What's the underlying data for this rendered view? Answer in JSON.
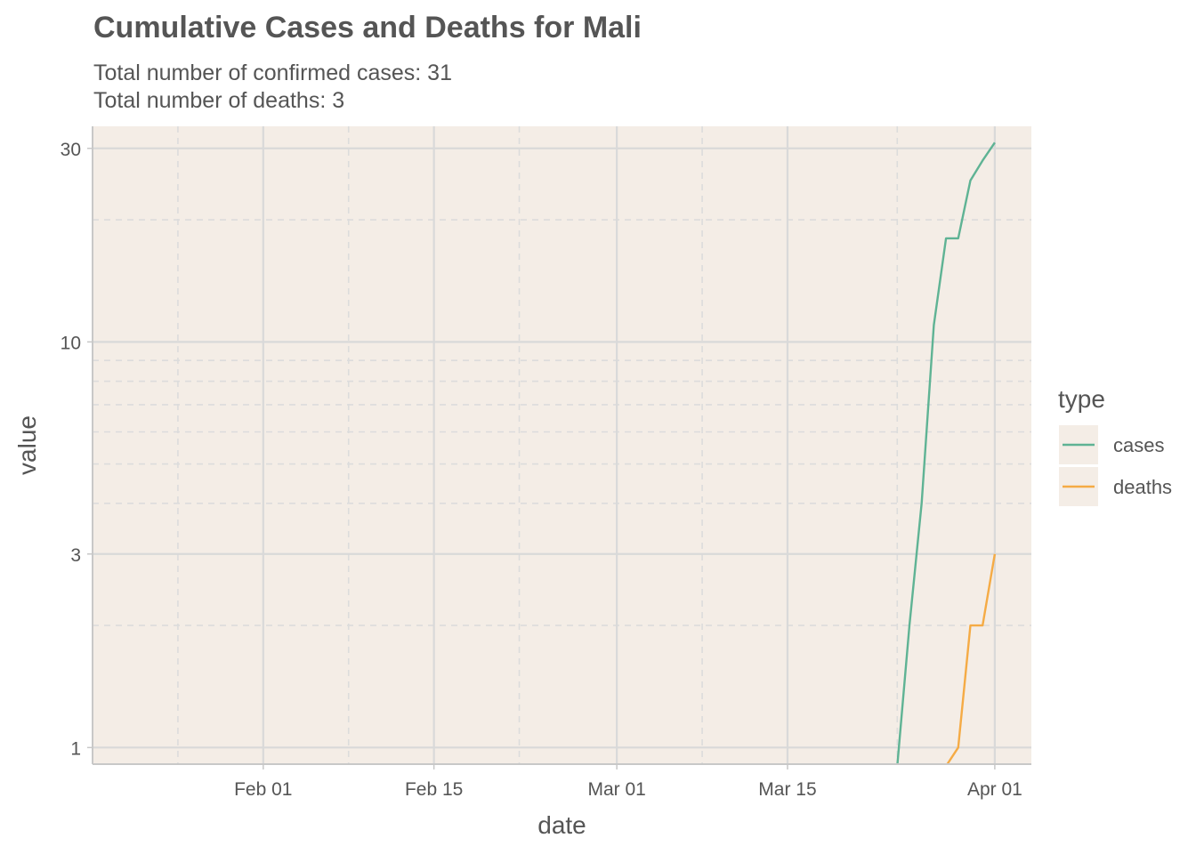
{
  "chart_data": {
    "type": "line",
    "title": "Cumulative Cases and Deaths for Mali",
    "subtitle_lines": [
      "Total number of confirmed cases: 31",
      "Total number of deaths: 3"
    ],
    "xlabel": "date",
    "ylabel": "value",
    "x_scale": "date",
    "y_scale": "log10",
    "xlim": [
      "2020-01-18",
      "2020-04-04"
    ],
    "ylim": [
      0.91,
      34
    ],
    "x_ticks": [
      {
        "value": "2020-02-01",
        "label": "Feb 01"
      },
      {
        "value": "2020-02-15",
        "label": "Feb 15"
      },
      {
        "value": "2020-03-01",
        "label": "Mar 01"
      },
      {
        "value": "2020-03-15",
        "label": "Mar 15"
      },
      {
        "value": "2020-04-01",
        "label": "Apr 01"
      }
    ],
    "x_minor_ticks": [
      "2020-01-25",
      "2020-02-08",
      "2020-02-22",
      "2020-03-08",
      "2020-03-24"
    ],
    "y_ticks": [
      {
        "value": 1,
        "label": "1"
      },
      {
        "value": 3,
        "label": "3"
      },
      {
        "value": 10,
        "label": "10"
      },
      {
        "value": 30,
        "label": "30"
      }
    ],
    "y_minor_ticks": [
      2,
      4,
      5,
      6,
      7,
      8,
      9,
      20
    ],
    "grid": true,
    "legend": {
      "title": "type",
      "position": "right"
    },
    "background_color": "#f4ede6",
    "series": [
      {
        "name": "cases",
        "color": "#5fb394",
        "points": [
          {
            "x": "2020-03-24",
            "y": 0.9
          },
          {
            "x": "2020-03-25",
            "y": 2
          },
          {
            "x": "2020-03-26",
            "y": 4
          },
          {
            "x": "2020-03-27",
            "y": 11
          },
          {
            "x": "2020-03-28",
            "y": 18
          },
          {
            "x": "2020-03-29",
            "y": 18
          },
          {
            "x": "2020-03-30",
            "y": 25
          },
          {
            "x": "2020-03-31",
            "y": 28
          },
          {
            "x": "2020-04-01",
            "y": 31
          }
        ]
      },
      {
        "name": "deaths",
        "color": "#f5ab45",
        "points": [
          {
            "x": "2020-03-28",
            "y": 0.9
          },
          {
            "x": "2020-03-29",
            "y": 1
          },
          {
            "x": "2020-03-30",
            "y": 2
          },
          {
            "x": "2020-03-31",
            "y": 2
          },
          {
            "x": "2020-04-01",
            "y": 3
          }
        ]
      }
    ]
  }
}
